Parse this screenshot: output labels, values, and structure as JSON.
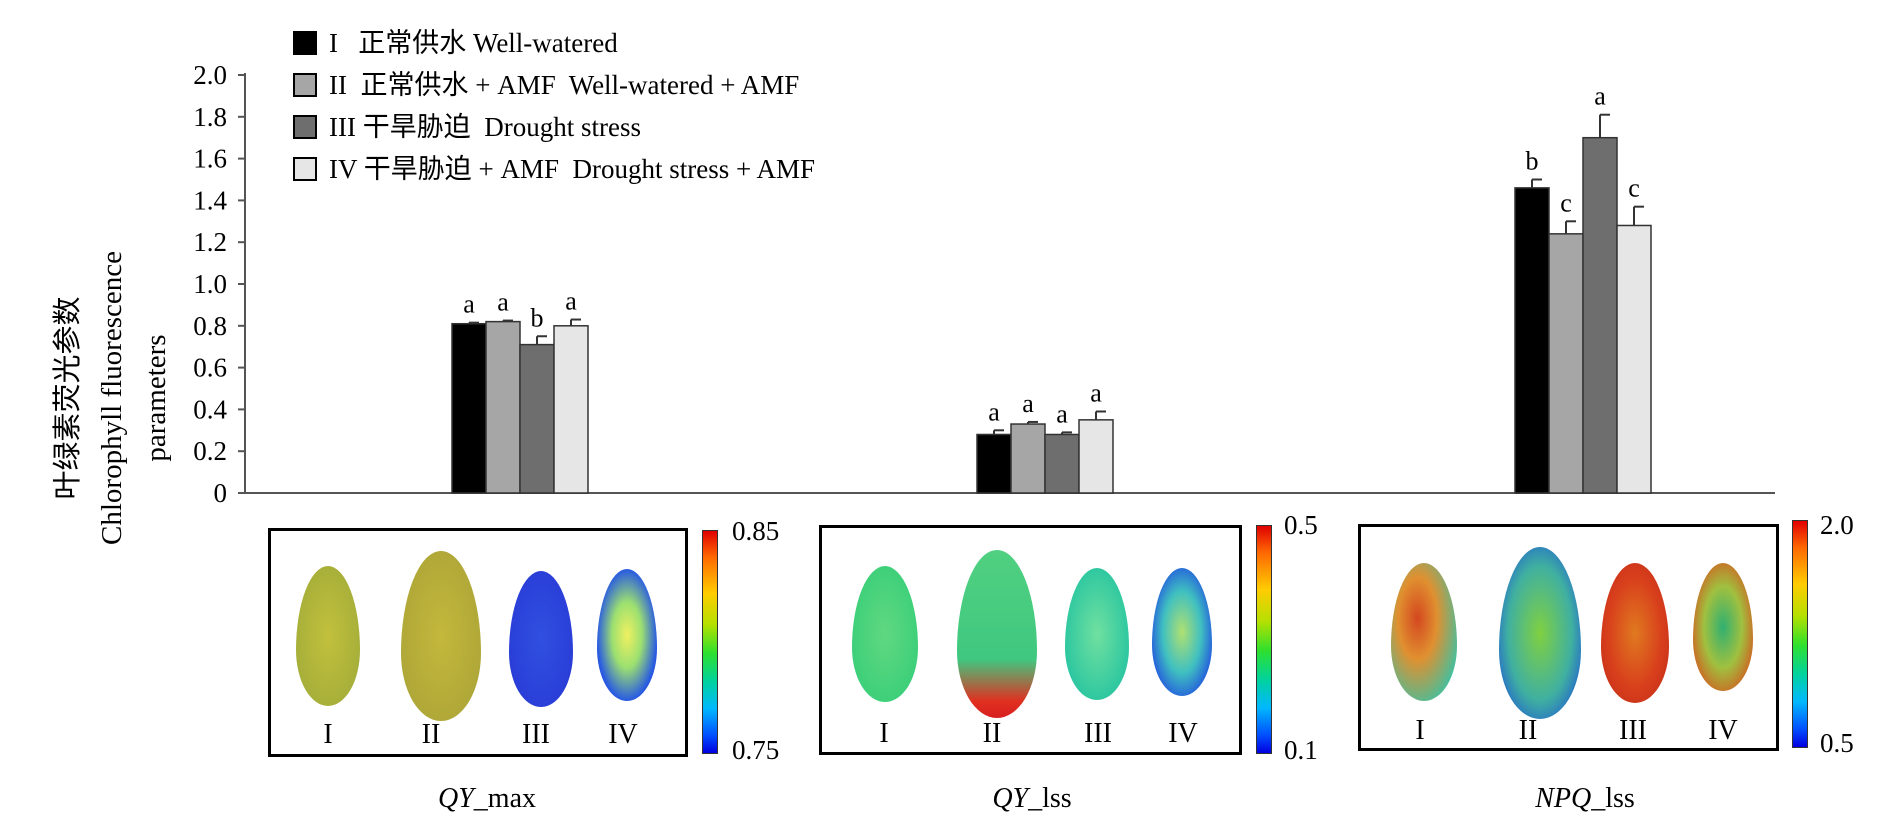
{
  "chart_data": {
    "type": "bar",
    "ylabel_zh": "叶绿素荧光参数",
    "ylabel_en_line1": "Chlorophyll fluorescence",
    "ylabel_en_line2": "parameters",
    "ylim": [
      0,
      2.0
    ],
    "yticks": [
      "0",
      "0.2",
      "0.4",
      "0.6",
      "0.8",
      "1.0",
      "1.2",
      "1.4",
      "1.6",
      "1.8",
      "2.0"
    ],
    "categories": [
      "QY_max",
      "QY_lss",
      "NPQ_lss"
    ],
    "series": [
      {
        "name": "I   正常供水 Well-watered",
        "color": "#000000",
        "values": [
          0.81,
          0.28,
          1.46
        ],
        "errors": [
          0.005,
          0.02,
          0.04
        ],
        "letters": [
          "a",
          "a",
          "b"
        ]
      },
      {
        "name": "II  正常供水 + AMF  Well-watered + AMF",
        "color": "#a6a6a6",
        "values": [
          0.82,
          0.33,
          1.24
        ],
        "errors": [
          0.005,
          0.01,
          0.06
        ],
        "letters": [
          "a",
          "a",
          "c"
        ]
      },
      {
        "name": "III 干旱胁迫  Drought stress",
        "color": "#6e6e6e",
        "values": [
          0.71,
          0.28,
          1.7
        ],
        "errors": [
          0.04,
          0.01,
          0.11
        ],
        "letters": [
          "b",
          "a",
          "a"
        ]
      },
      {
        "name": "IV 干旱胁迫 + AMF  Drought stress + AMF",
        "color": "#e6e6e6",
        "values": [
          0.8,
          0.35,
          1.28
        ],
        "errors": [
          0.03,
          0.04,
          0.09
        ],
        "letters": [
          "a",
          "a",
          "c"
        ]
      }
    ],
    "grid": false,
    "legend_position": "top-left"
  },
  "panels": [
    {
      "caption_italic": "QY",
      "caption_rest": "_max",
      "cbar_max": "0.85",
      "cbar_min": "0.75",
      "leaf_labels": [
        "I",
        "II",
        "III",
        "IV"
      ]
    },
    {
      "caption_italic": "QY",
      "caption_rest": "_lss",
      "cbar_max": "0.5",
      "cbar_min": "0.1",
      "leaf_labels": [
        "I",
        "II",
        "III",
        "IV"
      ]
    },
    {
      "caption_italic": "NPQ",
      "caption_rest": "_lss",
      "cbar_max": "2.0",
      "cbar_min": "0.5",
      "leaf_labels": [
        "I",
        "II",
        "III",
        "IV"
      ]
    }
  ],
  "colors": {
    "leaf_yellow_green": "#b5b83a",
    "leaf_green": "#3fd07a",
    "leaf_blue": "#2a3fd8",
    "leaf_red": "#d4471f"
  }
}
